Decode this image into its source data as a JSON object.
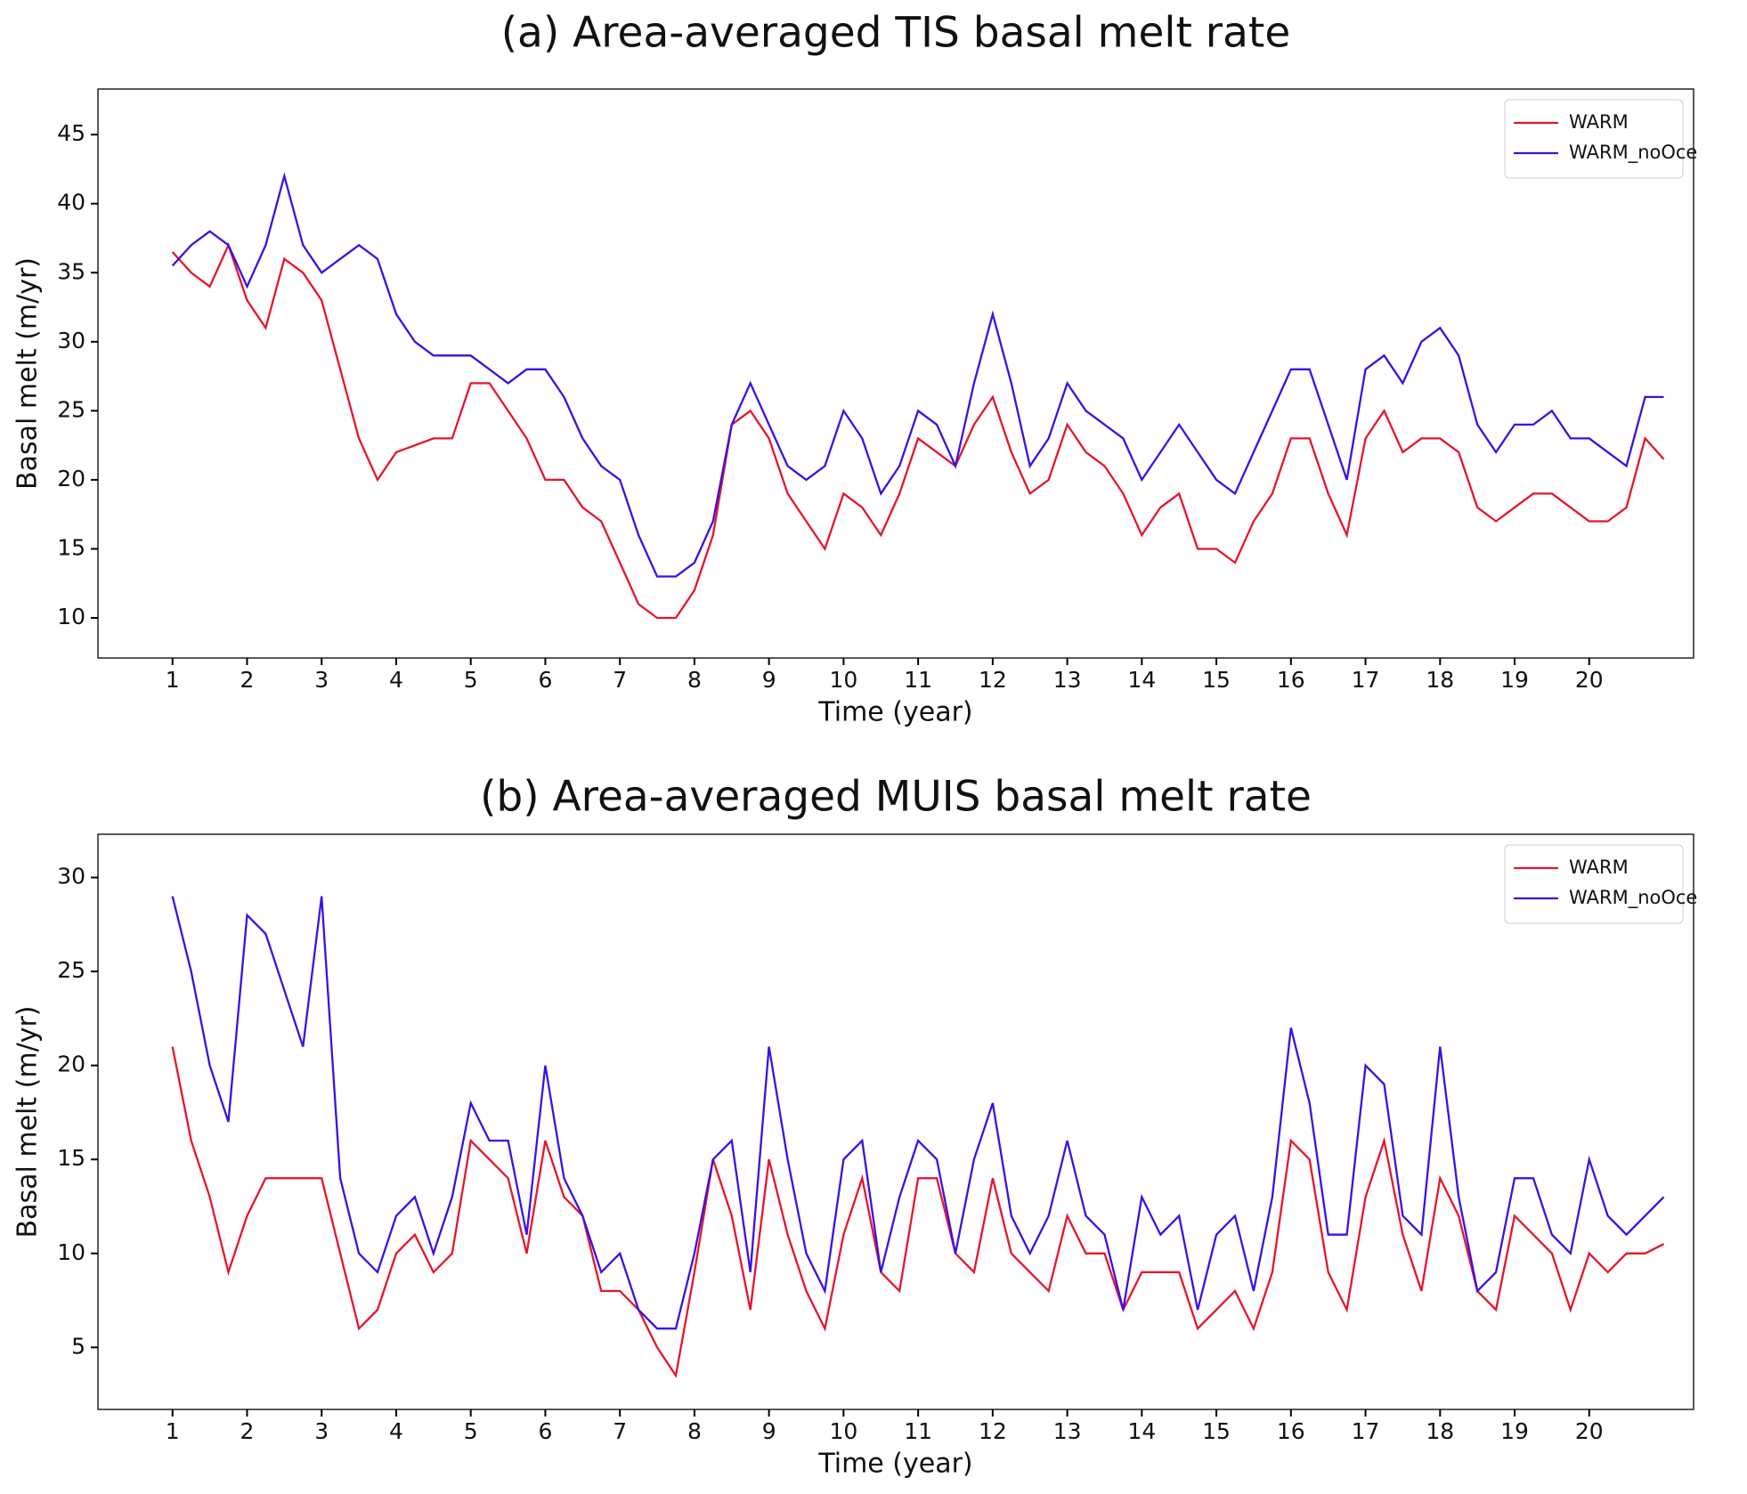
{
  "chart_data": [
    {
      "type": "line",
      "title": "(a) Area-averaged TIS basal melt rate",
      "x_label": "Time (year)",
      "y_label": "Basal melt (m/yr)",
      "x": [
        1,
        1.25,
        1.5,
        1.75,
        2,
        2.25,
        2.5,
        2.75,
        3,
        3.25,
        3.5,
        3.75,
        4,
        4.25,
        4.5,
        4.75,
        5,
        5.25,
        5.5,
        5.75,
        6,
        6.25,
        6.5,
        6.75,
        7,
        7.25,
        7.5,
        7.75,
        8,
        8.25,
        8.5,
        8.75,
        9,
        9.25,
        9.5,
        9.75,
        10,
        10.25,
        10.5,
        10.75,
        11,
        11.25,
        11.5,
        11.75,
        12,
        12.25,
        12.5,
        12.75,
        13,
        13.25,
        13.5,
        13.75,
        14,
        14.25,
        14.5,
        14.75,
        15,
        15.25,
        15.5,
        15.75,
        16,
        16.25,
        16.5,
        16.75,
        17,
        17.25,
        17.5,
        17.75,
        18,
        18.25,
        18.5,
        18.75,
        19,
        19.25,
        19.5,
        19.75,
        20,
        20.25,
        20.5,
        20.75,
        21
      ],
      "series": [
        {
          "name": "WARM",
          "color": "#e8142c",
          "values": [
            36.5,
            35,
            34,
            37,
            33,
            31,
            36,
            35,
            33,
            28,
            23,
            20,
            22,
            22.5,
            23,
            23,
            27,
            27,
            25,
            23,
            20,
            20,
            18,
            17,
            14,
            11,
            10,
            10,
            12,
            16,
            24,
            25,
            23,
            19,
            17,
            15,
            19,
            18,
            16,
            19,
            23,
            22,
            21,
            24,
            26,
            22,
            19,
            20,
            24,
            22,
            21,
            19,
            16,
            18,
            19,
            15,
            15,
            14,
            17,
            19,
            23,
            23,
            19,
            16,
            23,
            25,
            22,
            23,
            23,
            22,
            18,
            17,
            18,
            19,
            19,
            18,
            17,
            17,
            18,
            23,
            21.5
          ]
        },
        {
          "name": "WARM_noOce",
          "color": "#3a10e8",
          "values": [
            35.5,
            37,
            38,
            37,
            34,
            37,
            42,
            37,
            35,
            36,
            37,
            36,
            32,
            30,
            29,
            29,
            29,
            28,
            27,
            28,
            28,
            26,
            23,
            21,
            20,
            16,
            13,
            13,
            14,
            17,
            24,
            27,
            24,
            21,
            20,
            21,
            25,
            23,
            19,
            21,
            25,
            24,
            21,
            27,
            32,
            27,
            21,
            23,
            27,
            25,
            24,
            23,
            20,
            22,
            24,
            22,
            20,
            19,
            22,
            25,
            28,
            28,
            24,
            20,
            28,
            29,
            27,
            30,
            31,
            29,
            24,
            22,
            24,
            24,
            25,
            23,
            23,
            22,
            21,
            26,
            26
          ]
        }
      ],
      "xlim": [
        0,
        21.4
      ],
      "xticks": [
        1,
        2,
        3,
        4,
        5,
        6,
        7,
        8,
        9,
        10,
        11,
        12,
        13,
        14,
        15,
        16,
        17,
        18,
        19,
        20
      ],
      "ylim": [
        7.1,
        48.3
      ],
      "yticks": [
        10,
        15,
        20,
        25,
        30,
        35,
        40,
        45
      ],
      "legend": "upper right",
      "grid": false
    },
    {
      "type": "line",
      "title": "(b) Area-averaged MUIS basal melt rate",
      "x_label": "Time (year)",
      "y_label": "Basal melt (m/yr)",
      "x": [
        1,
        1.25,
        1.5,
        1.75,
        2,
        2.25,
        2.5,
        2.75,
        3,
        3.25,
        3.5,
        3.75,
        4,
        4.25,
        4.5,
        4.75,
        5,
        5.25,
        5.5,
        5.75,
        6,
        6.25,
        6.5,
        6.75,
        7,
        7.25,
        7.5,
        7.75,
        8,
        8.25,
        8.5,
        8.75,
        9,
        9.25,
        9.5,
        9.75,
        10,
        10.25,
        10.5,
        10.75,
        11,
        11.25,
        11.5,
        11.75,
        12,
        12.25,
        12.5,
        12.75,
        13,
        13.25,
        13.5,
        13.75,
        14,
        14.25,
        14.5,
        14.75,
        15,
        15.25,
        15.5,
        15.75,
        16,
        16.25,
        16.5,
        16.75,
        17,
        17.25,
        17.5,
        17.75,
        18,
        18.25,
        18.5,
        18.75,
        19,
        19.25,
        19.5,
        19.75,
        20,
        20.25,
        20.5,
        20.75,
        21
      ],
      "series": [
        {
          "name": "WARM",
          "color": "#e8142c",
          "values": [
            21,
            16,
            13,
            9,
            12,
            14,
            14,
            14,
            14,
            10,
            6,
            7,
            10,
            11,
            9,
            10,
            16,
            15,
            14,
            10,
            16,
            13,
            12,
            8,
            8,
            7,
            5,
            3.5,
            9,
            15,
            12,
            7,
            15,
            11,
            8,
            6,
            11,
            14,
            9,
            8,
            14,
            14,
            10,
            9,
            14,
            10,
            9,
            8,
            12,
            10,
            10,
            7,
            9,
            9,
            9,
            6,
            7,
            8,
            6,
            9,
            16,
            15,
            9,
            7,
            13,
            16,
            11,
            8,
            14,
            12,
            8,
            7,
            12,
            11,
            10,
            7,
            10,
            9,
            10,
            10,
            10.5
          ]
        },
        {
          "name": "WARM_noOce",
          "color": "#3a10e8",
          "values": [
            29,
            25,
            20,
            17,
            28,
            27,
            24,
            21,
            29,
            14,
            10,
            9,
            12,
            13,
            10,
            13,
            18,
            16,
            16,
            11,
            20,
            14,
            12,
            9,
            10,
            7,
            6,
            6,
            10,
            15,
            16,
            9,
            21,
            15,
            10,
            8,
            15,
            16,
            9,
            13,
            16,
            15,
            10,
            15,
            18,
            12,
            10,
            12,
            16,
            12,
            11,
            7,
            13,
            11,
            12,
            7,
            11,
            12,
            8,
            13,
            22,
            18,
            11,
            11,
            20,
            19,
            12,
            11,
            21,
            13,
            8,
            9,
            14,
            14,
            11,
            10,
            15,
            12,
            11,
            12,
            13
          ]
        }
      ],
      "xlim": [
        0,
        21.4
      ],
      "xticks": [
        1,
        2,
        3,
        4,
        5,
        6,
        7,
        8,
        9,
        10,
        11,
        12,
        13,
        14,
        15,
        16,
        17,
        18,
        19,
        20
      ],
      "ylim": [
        1.7,
        32.3
      ],
      "yticks": [
        5,
        10,
        15,
        20,
        25,
        30
      ],
      "legend": "upper right",
      "grid": false
    }
  ]
}
